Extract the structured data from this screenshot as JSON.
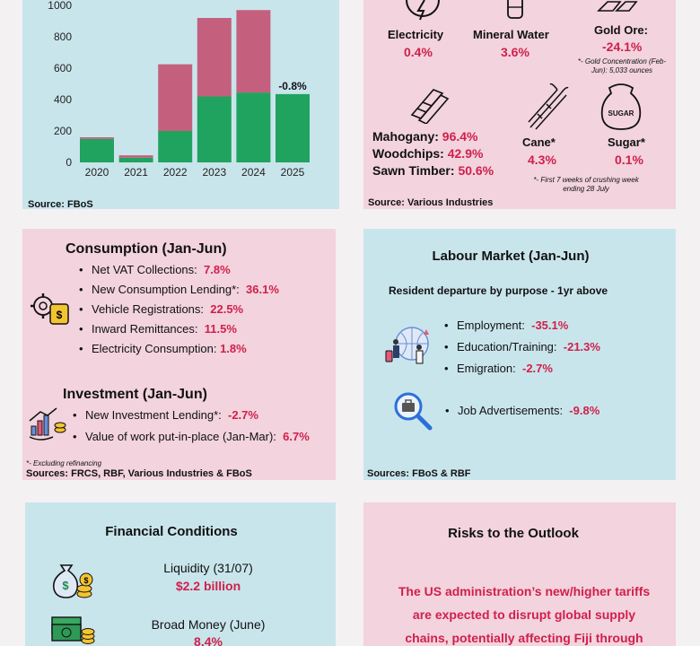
{
  "chart_data": {
    "type": "bar",
    "categories": [
      "2020",
      "2021",
      "2022",
      "2023",
      "2024",
      "2025"
    ],
    "series": [
      {
        "values": [
          150,
          30,
          200,
          420,
          445,
          435
        ]
      },
      {
        "values": [
          10,
          15,
          425,
          500,
          525,
          0
        ]
      }
    ],
    "ylim": [
      0,
      1000
    ],
    "yticks": [
      "0",
      "200",
      "400",
      "600",
      "800",
      "1000"
    ],
    "annotations": [
      {
        "category": "2025",
        "text": "-0.8%"
      }
    ],
    "colors": {
      "base": "#20a35e",
      "top": "#c4607e"
    }
  },
  "chart_source": "Source: FBoS",
  "industries": {
    "electricity": {
      "label": "Electricity",
      "value": "0.4%"
    },
    "mineral_water": {
      "label": "Mineral Water",
      "value": "3.6%"
    },
    "gold": {
      "label": "Gold Ore:",
      "value": "-24.1%",
      "note": "*- Gold Concentration (Feb-Jun): 5,033 ounces"
    },
    "mahogany": {
      "label": "Mahogany:",
      "value": "96.4%"
    },
    "woodchips": {
      "label": "Woodchips:",
      "value": "42.9%"
    },
    "sawn": {
      "label": "Sawn Timber:",
      "value": "50.6%"
    },
    "cane": {
      "label": "Cane*",
      "value": "4.3%"
    },
    "sugar": {
      "label": "Sugar*",
      "value": "0.1%",
      "icon_text": "SUGAR"
    },
    "note": "*- First 7 weeks of crushing week ending 28 July",
    "source": "Source: Various Industries"
  },
  "consumption": {
    "title": "Consumption (Jan-Jun)",
    "items": [
      {
        "label": "Net VAT Collections:",
        "value": "7.8%"
      },
      {
        "label": "New Consumption Lending*:",
        "value": "36.1%"
      },
      {
        "label": "Vehicle Registrations:",
        "value": "22.5%"
      },
      {
        "label": "Inward Remittances:",
        "value": "11.5%"
      },
      {
        "label": "Electricity Consumption:",
        "value": "1.8%"
      }
    ]
  },
  "investment": {
    "title": "Investment (Jan-Jun)",
    "items": [
      {
        "label": "New Investment Lending*:",
        "value": "-2.7%"
      },
      {
        "label": "Value of work put-in-place (Jan-Mar):",
        "value": "6.7%"
      }
    ],
    "note": "*- Excluding refinancing",
    "source": "Sources: FRCS, RBF, Various Industries & FBoS"
  },
  "labour": {
    "title": "Labour Market (Jan-Jun)",
    "subtitle": "Resident departure by purpose - 1yr above",
    "items": [
      {
        "label": "Employment:",
        "value": "-35.1%"
      },
      {
        "label": "Education/Training:",
        "value": "-21.3%"
      },
      {
        "label": "Emigration:",
        "value": "-2.7%"
      }
    ],
    "job": {
      "label": "Job Advertisements:",
      "value": "-9.8%"
    },
    "source": "Sources: FBoS & RBF"
  },
  "financial": {
    "title": "Financial Conditions",
    "liquidity": {
      "label": "Liquidity (31/07)",
      "value": "$2.2 billion"
    },
    "money": {
      "label": "Broad Money (June)",
      "value": "8.4%"
    }
  },
  "risks": {
    "title": "Risks to the Outlook",
    "lines": [
      "The US administration’s new/higher tariffs",
      "are expected to disrupt global supply",
      "chains, potentially affecting Fiji through"
    ]
  }
}
